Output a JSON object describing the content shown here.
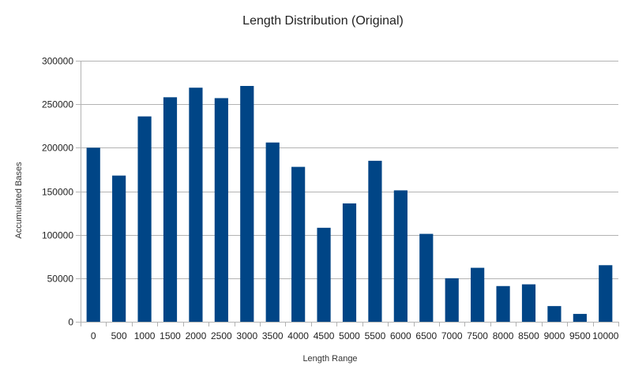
{
  "chart_data": {
    "type": "bar",
    "title": "Length Distribution (Original)",
    "xlabel": "Length Range",
    "ylabel": "Accumulated Bases",
    "categories": [
      "0",
      "500",
      "1000",
      "1500",
      "2000",
      "2500",
      "3000",
      "3500",
      "4000",
      "4500",
      "5000",
      "5500",
      "6000",
      "6500",
      "7000",
      "7500",
      "8000",
      "8500",
      "9000",
      "9500",
      "10000"
    ],
    "values": [
      200000,
      168000,
      236000,
      258000,
      269000,
      257000,
      271000,
      206000,
      178000,
      108000,
      136000,
      185000,
      151000,
      101000,
      50000,
      62000,
      41000,
      43000,
      18000,
      9000,
      65000
    ],
    "ylim": [
      0,
      300000
    ],
    "yticks": [
      0,
      50000,
      100000,
      150000,
      200000,
      250000,
      300000
    ],
    "ytick_labels": [
      "0",
      "50000",
      "100000",
      "150000",
      "200000",
      "250000",
      "300000"
    ],
    "grid": true,
    "legend": "none",
    "bar_color": "#004586"
  }
}
